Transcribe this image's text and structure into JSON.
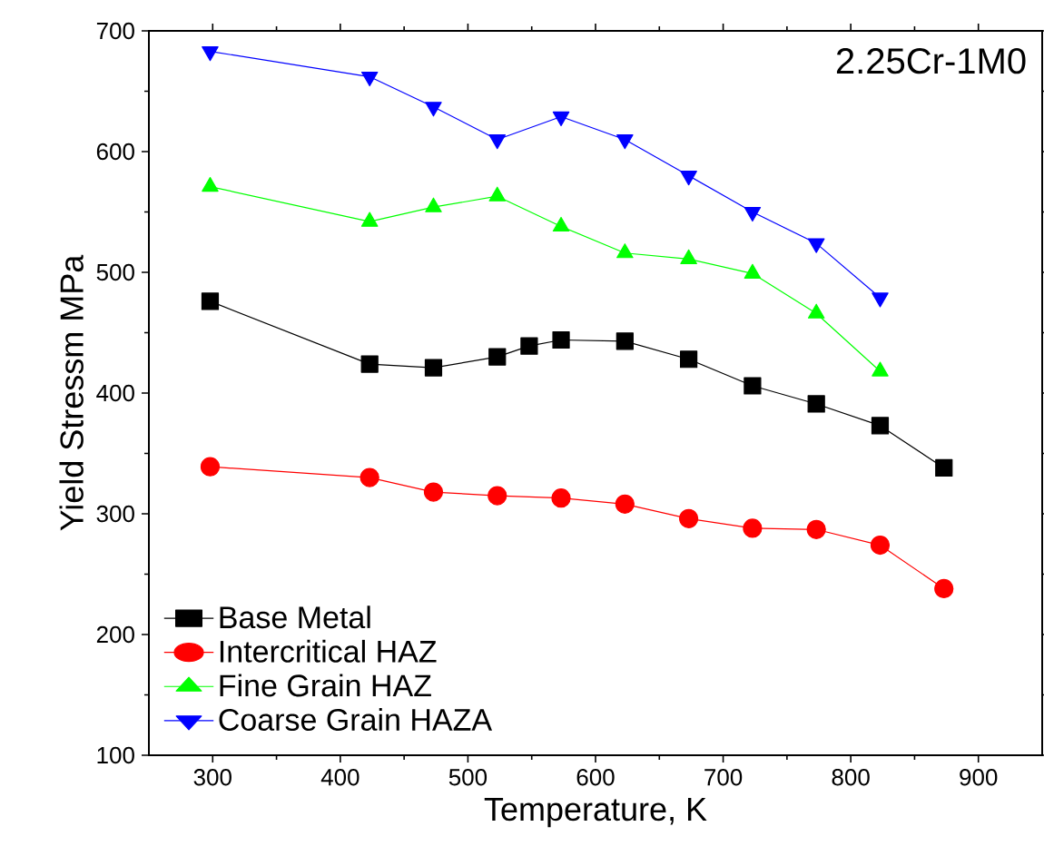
{
  "chart_data": {
    "type": "line",
    "xlabel": "Temperature, K",
    "ylabel": "Yield Stressm MPa",
    "annotations": [
      "2.25Cr-1M0"
    ],
    "xlim": [
      250,
      950
    ],
    "xticks": [
      300,
      400,
      500,
      600,
      700,
      800,
      900
    ],
    "ylim": [
      100,
      700
    ],
    "yticks": [
      100,
      200,
      300,
      400,
      500,
      600,
      700
    ],
    "legend": "bottom left",
    "line_style": "solid",
    "series": [
      {
        "name": "Base Metal",
        "color": "#000000",
        "marker": "square",
        "x": [
          298,
          423,
          473,
          523,
          548,
          573,
          623,
          673,
          723,
          773,
          823,
          873
        ],
        "values": [
          476,
          424,
          421,
          430,
          439,
          444,
          443,
          428,
          406,
          391,
          373,
          338
        ]
      },
      {
        "name": "Intercritical HAZ",
        "color": "#ff0000",
        "marker": "circle",
        "x": [
          298,
          423,
          473,
          523,
          573,
          623,
          673,
          723,
          773,
          823,
          873
        ],
        "values": [
          339,
          330,
          318,
          315,
          313,
          308,
          296,
          288,
          287,
          274,
          238
        ]
      },
      {
        "name": "Fine Grain HAZ",
        "color": "#00ff00",
        "marker": "triangle",
        "x": [
          298,
          423,
          473,
          523,
          573,
          623,
          673,
          723,
          773,
          823
        ],
        "values": [
          571,
          542,
          554,
          563,
          538,
          516,
          511,
          499,
          466,
          418
        ]
      },
      {
        "name": "Coarse Grain HAZA",
        "color": "#0000ff",
        "marker": "triangle-down",
        "x": [
          298,
          423,
          473,
          523,
          573,
          623,
          673,
          723,
          773,
          823
        ],
        "values": [
          683,
          662,
          637,
          610,
          629,
          610,
          580,
          550,
          524,
          479
        ]
      }
    ]
  }
}
